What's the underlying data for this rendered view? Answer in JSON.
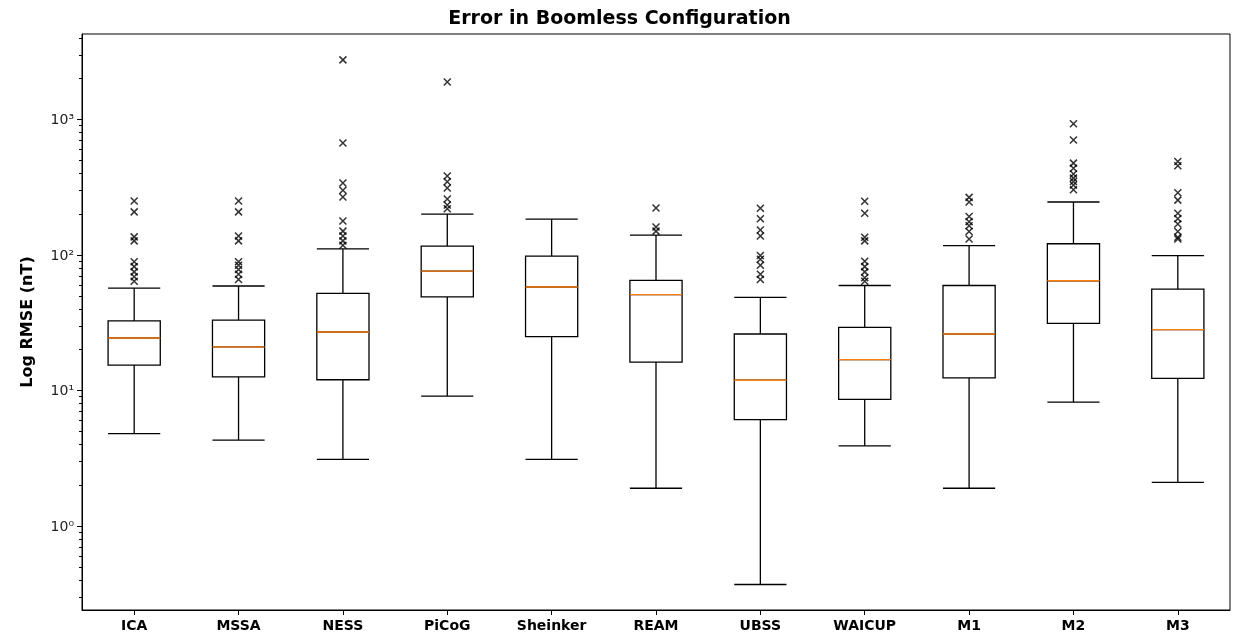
{
  "chart_data": {
    "type": "box",
    "title": "Error in Boomless Configuration",
    "ylabel": "Log RMSE (nT)",
    "log": true,
    "marker": "cross",
    "color": "#000000",
    "categories": [
      "ICA",
      "MSSA",
      "NESS",
      "PiCoG",
      "Sheinker",
      "REAM",
      "UBSS",
      "WAICUP",
      "M1",
      "M2",
      "M3"
    ],
    "ylim": [
      0.24,
      4270
    ],
    "yticks": [
      {
        "value": 1,
        "label": "10⁰"
      },
      {
        "value": 10,
        "label": "10¹"
      },
      {
        "value": 100,
        "label": "10²"
      },
      {
        "value": 1000,
        "label": "10³"
      }
    ],
    "boxes": [
      {
        "low": 4.8,
        "q1": 15.4,
        "median": 24.4,
        "q3": 32.6,
        "high": 57,
        "outliers": [
          250,
          208,
          136,
          127,
          89,
          82,
          75,
          69,
          64
        ]
      },
      {
        "low": 4.3,
        "q1": 12.6,
        "median": 21,
        "q3": 33,
        "high": 59,
        "outliers": [
          250,
          208,
          138,
          127,
          89,
          84,
          78,
          72,
          66
        ]
      },
      {
        "low": 3.1,
        "q1": 12,
        "median": 27,
        "q3": 52,
        "high": 111,
        "outliers": [
          2750,
          670,
          340,
          300,
          268,
          178,
          150,
          138,
          127,
          118
        ]
      },
      {
        "low": 9.1,
        "q1": 49,
        "median": 76,
        "q3": 116,
        "high": 200,
        "outliers": [
          1890,
          383,
          347,
          312,
          259,
          234,
          219
        ]
      },
      {
        "low": 3.1,
        "q1": 25,
        "median": 58,
        "q3": 98,
        "high": 184
      },
      {
        "low": 1.9,
        "q1": 16.2,
        "median": 51,
        "q3": 65,
        "high": 140,
        "outliers": [
          222,
          161,
          150
        ]
      },
      {
        "low": 0.37,
        "q1": 6.1,
        "median": 11.9,
        "q3": 26.1,
        "high": 48.6,
        "outliers": [
          221,
          185,
          153,
          138,
          99,
          93,
          84,
          72,
          66
        ]
      },
      {
        "low": 3.9,
        "q1": 8.6,
        "median": 16.9,
        "q3": 29.2,
        "high": 59.5,
        "outliers": [
          249,
          203,
          135,
          127,
          90,
          82,
          75,
          68,
          64
        ]
      },
      {
        "low": 1.9,
        "q1": 12.4,
        "median": 26.1,
        "q3": 59.5,
        "high": 117,
        "outliers": [
          266,
          246,
          192,
          176,
          164,
          149,
          131
        ]
      },
      {
        "low": 8.2,
        "q1": 31.3,
        "median": 64.5,
        "q3": 121,
        "high": 246,
        "outliers": [
          928,
          706,
          476,
          436,
          396,
          369,
          348,
          328,
          303
        ]
      },
      {
        "low": 2.1,
        "q1": 12.3,
        "median": 28.1,
        "q3": 56,
        "high": 99,
        "outliers": [
          490,
          455,
          288,
          254,
          203,
          185,
          169,
          149,
          135,
          131
        ]
      }
    ]
  }
}
